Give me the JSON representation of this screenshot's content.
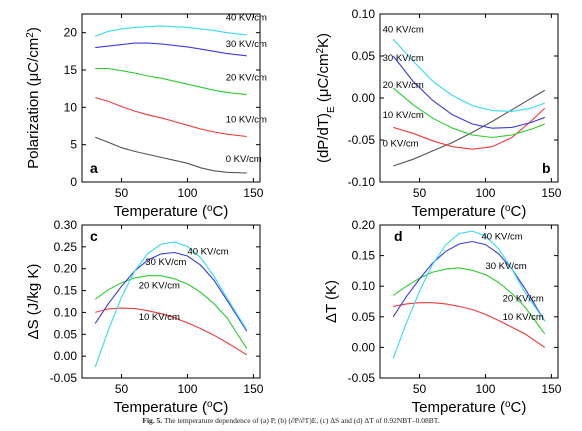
{
  "caption": {
    "label": "Fig. 5.",
    "text": "The temperature dependence of (a) P, (b) (∂P/∂T)E, (c) ΔS and (d) ΔT of 0.92NBT–0.08BT."
  },
  "colors": {
    "0 KV/cm": "#555555",
    "10 KV/cm": "#ee3b3b",
    "20 KV/cm": "#2ecc2e",
    "30 KV/cm": "#3b3bdd",
    "40 KV/cm": "#33ddee"
  },
  "chart_data": [
    {
      "type": "line",
      "panel": "a",
      "xlabel": "Temperature (°C)",
      "ylabel": "Polarization (μC/cm²)",
      "xlim": [
        20,
        155
      ],
      "ylim": [
        0,
        22.5
      ],
      "xticks": [
        50,
        100,
        150
      ],
      "yticks": [
        0,
        5,
        10,
        15,
        20
      ],
      "series": [
        {
          "name": "0 KV/cm",
          "x": [
            30,
            40,
            50,
            60,
            70,
            80,
            90,
            100,
            110,
            120,
            130,
            145
          ],
          "y": [
            6.0,
            5.3,
            4.6,
            4.1,
            3.7,
            3.3,
            2.9,
            2.5,
            1.9,
            1.5,
            1.3,
            1.2
          ]
        },
        {
          "name": "10 KV/cm",
          "x": [
            30,
            40,
            50,
            60,
            70,
            80,
            90,
            100,
            110,
            120,
            130,
            145
          ],
          "y": [
            11.3,
            10.8,
            10.1,
            9.5,
            9.0,
            8.6,
            8.1,
            7.6,
            7.1,
            6.7,
            6.4,
            6.1
          ]
        },
        {
          "name": "20 KV/cm",
          "x": [
            30,
            40,
            50,
            60,
            70,
            80,
            90,
            100,
            110,
            120,
            130,
            145
          ],
          "y": [
            15.2,
            15.2,
            14.9,
            14.6,
            14.2,
            13.9,
            13.5,
            13.1,
            12.7,
            12.3,
            12.0,
            11.7
          ]
        },
        {
          "name": "30 KV/cm",
          "x": [
            30,
            40,
            50,
            60,
            70,
            80,
            90,
            100,
            110,
            120,
            130,
            145
          ],
          "y": [
            18.0,
            18.2,
            18.4,
            18.6,
            18.6,
            18.5,
            18.3,
            18.1,
            17.8,
            17.5,
            17.2,
            16.9
          ]
        },
        {
          "name": "40 KV/cm",
          "x": [
            30,
            40,
            50,
            60,
            70,
            80,
            90,
            100,
            110,
            120,
            130,
            145
          ],
          "y": [
            19.5,
            20.2,
            20.5,
            20.7,
            20.8,
            20.9,
            20.8,
            20.7,
            20.5,
            20.3,
            20.0,
            19.7
          ]
        }
      ]
    },
    {
      "type": "line",
      "panel": "b",
      "xlabel": "Temperature (°C)",
      "ylabel": "(dP/dT)E (μC/cm²K)",
      "xlim": [
        20,
        155
      ],
      "ylim": [
        -0.1,
        0.1
      ],
      "xticks": [
        50,
        100,
        150
      ],
      "yticks": [
        -0.1,
        -0.05,
        0.0,
        0.05,
        0.1
      ],
      "series": [
        {
          "name": "0 KV/cm",
          "x": [
            30,
            45,
            60,
            75,
            90,
            105,
            120,
            135,
            145
          ],
          "y": [
            -0.081,
            -0.073,
            -0.063,
            -0.053,
            -0.041,
            -0.028,
            -0.014,
            0.0,
            0.009
          ]
        },
        {
          "name": "10 KV/cm",
          "x": [
            30,
            45,
            60,
            75,
            90,
            105,
            120,
            135,
            145
          ],
          "y": [
            -0.035,
            -0.042,
            -0.051,
            -0.058,
            -0.061,
            -0.058,
            -0.047,
            -0.027,
            -0.012
          ]
        },
        {
          "name": "20 KV/cm",
          "x": [
            30,
            45,
            60,
            75,
            90,
            105,
            120,
            135,
            145
          ],
          "y": [
            0.012,
            -0.008,
            -0.024,
            -0.036,
            -0.044,
            -0.047,
            -0.044,
            -0.037,
            -0.031
          ]
        },
        {
          "name": "30 KV/cm",
          "x": [
            30,
            45,
            60,
            75,
            90,
            105,
            120,
            135,
            145
          ],
          "y": [
            0.05,
            0.02,
            -0.003,
            -0.02,
            -0.031,
            -0.036,
            -0.035,
            -0.029,
            -0.023
          ]
        },
        {
          "name": "40 KV/cm",
          "x": [
            30,
            45,
            60,
            75,
            90,
            105,
            120,
            135,
            145
          ],
          "y": [
            0.07,
            0.044,
            0.02,
            0.003,
            -0.009,
            -0.015,
            -0.016,
            -0.012,
            -0.006
          ]
        }
      ]
    },
    {
      "type": "line",
      "panel": "c",
      "xlabel": "Temperature (°C)",
      "ylabel": "ΔS (J/kg K)",
      "xlim": [
        20,
        155
      ],
      "ylim": [
        -0.05,
        0.3
      ],
      "xticks": [
        50,
        100,
        150
      ],
      "yticks": [
        -0.05,
        0.0,
        0.05,
        0.1,
        0.15,
        0.2,
        0.25,
        0.3
      ],
      "series": [
        {
          "name": "10 KV/cm",
          "x": [
            30,
            40,
            50,
            60,
            70,
            80,
            90,
            100,
            110,
            120,
            130,
            145
          ],
          "y": [
            0.1,
            0.108,
            0.11,
            0.109,
            0.104,
            0.097,
            0.088,
            0.076,
            0.063,
            0.048,
            0.031,
            0.003
          ]
        },
        {
          "name": "20 KV/cm",
          "x": [
            30,
            40,
            50,
            60,
            70,
            80,
            90,
            100,
            110,
            120,
            130,
            145
          ],
          "y": [
            0.13,
            0.152,
            0.168,
            0.179,
            0.184,
            0.184,
            0.177,
            0.165,
            0.146,
            0.12,
            0.088,
            0.017
          ]
        },
        {
          "name": "30 KV/cm",
          "x": [
            30,
            40,
            50,
            60,
            70,
            80,
            90,
            100,
            110,
            120,
            130,
            145
          ],
          "y": [
            0.075,
            0.12,
            0.16,
            0.195,
            0.22,
            0.234,
            0.237,
            0.229,
            0.208,
            0.174,
            0.128,
            0.057
          ]
        },
        {
          "name": "40 KV/cm",
          "x": [
            30,
            40,
            50,
            60,
            70,
            80,
            90,
            100,
            110,
            120,
            130,
            145
          ],
          "y": [
            -0.025,
            0.06,
            0.135,
            0.195,
            0.235,
            0.256,
            0.261,
            0.251,
            0.225,
            0.183,
            0.133,
            0.06
          ]
        }
      ]
    },
    {
      "type": "line",
      "panel": "d",
      "xlabel": "Temperature (°C)",
      "ylabel": "ΔT (K)",
      "xlim": [
        20,
        155
      ],
      "ylim": [
        -0.05,
        0.2
      ],
      "xticks": [
        50,
        100,
        150
      ],
      "yticks": [
        -0.05,
        0.0,
        0.05,
        0.1,
        0.15,
        0.2
      ],
      "series": [
        {
          "name": "10 KV/cm",
          "x": [
            30,
            40,
            50,
            60,
            70,
            80,
            90,
            100,
            110,
            120,
            130,
            145
          ],
          "y": [
            0.067,
            0.071,
            0.073,
            0.073,
            0.071,
            0.067,
            0.062,
            0.054,
            0.044,
            0.033,
            0.022,
            0.0
          ]
        },
        {
          "name": "20 KV/cm",
          "x": [
            30,
            40,
            50,
            60,
            70,
            80,
            90,
            100,
            110,
            120,
            130,
            145
          ],
          "y": [
            0.085,
            0.1,
            0.113,
            0.123,
            0.128,
            0.13,
            0.126,
            0.119,
            0.106,
            0.088,
            0.066,
            0.022
          ]
        },
        {
          "name": "30 KV/cm",
          "x": [
            30,
            40,
            50,
            60,
            70,
            80,
            90,
            100,
            110,
            120,
            130,
            145
          ],
          "y": [
            0.05,
            0.083,
            0.112,
            0.138,
            0.157,
            0.169,
            0.173,
            0.168,
            0.153,
            0.128,
            0.096,
            0.043
          ]
        },
        {
          "name": "40 KV/cm",
          "x": [
            30,
            40,
            50,
            60,
            70,
            80,
            90,
            100,
            110,
            120,
            130,
            145
          ],
          "y": [
            -0.018,
            0.04,
            0.092,
            0.136,
            0.168,
            0.186,
            0.19,
            0.182,
            0.161,
            0.128,
            0.09,
            0.043
          ]
        }
      ]
    }
  ],
  "curve_labels": [
    {
      "panel": 0,
      "items": [
        {
          "text": "40 KV/cm",
          "x": 129,
          "y": 21.6
        },
        {
          "text": "30 KV/cm",
          "x": 129,
          "y": 18.1
        },
        {
          "text": "20 KV/cm",
          "x": 129,
          "y": 13.6
        },
        {
          "text": "10 KV/cm",
          "x": 129,
          "y": 8.0
        },
        {
          "text": "0 KV/cm",
          "x": 129,
          "y": 2.7
        }
      ]
    },
    {
      "panel": 1,
      "items": [
        {
          "text": "40 KV/cm",
          "x": 22,
          "y": 0.078
        },
        {
          "text": "30 KV/cm",
          "x": 22,
          "y": 0.044
        },
        {
          "text": "20 KV/cm",
          "x": 22,
          "y": 0.012
        },
        {
          "text": "10 KV/cm",
          "x": 22,
          "y": -0.024
        },
        {
          "text": "0 KV/cm",
          "x": 22,
          "y": -0.058
        }
      ]
    },
    {
      "panel": 2,
      "items": [
        {
          "text": "40 KV/cm",
          "x": 100,
          "y": 0.232
        },
        {
          "text": "30 KV/cm",
          "x": 68,
          "y": 0.208
        },
        {
          "text": "20 KV/cm",
          "x": 63,
          "y": 0.155
        },
        {
          "text": "10 KV/cm",
          "x": 63,
          "y": 0.083
        }
      ]
    },
    {
      "panel": 3,
      "items": [
        {
          "text": "40 KV/cm",
          "x": 97,
          "y": 0.176
        },
        {
          "text": "30 KV/cm",
          "x": 100,
          "y": 0.128
        },
        {
          "text": "20 KV/cm",
          "x": 113,
          "y": 0.075
        },
        {
          "text": "10 KV/cm",
          "x": 113,
          "y": 0.045
        }
      ]
    }
  ]
}
